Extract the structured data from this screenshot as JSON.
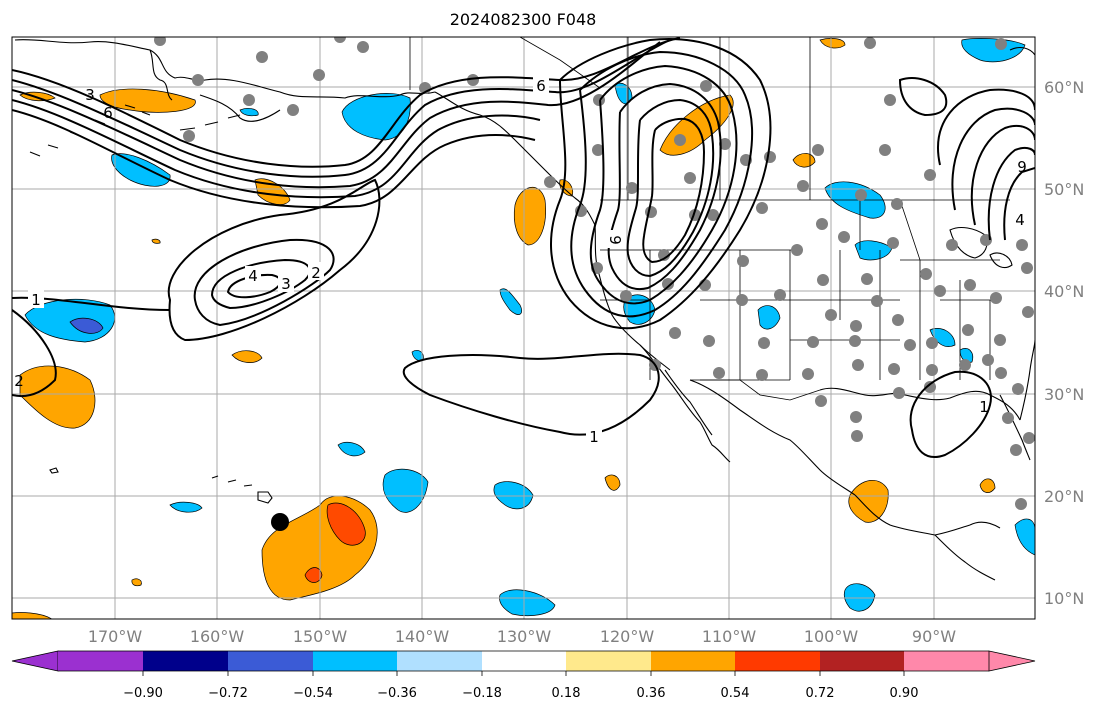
{
  "title": "2024082300 F048",
  "lon_labels": [
    "170°W",
    "160°W",
    "150°W",
    "140°W",
    "130°W",
    "120°W",
    "110°W",
    "100°W",
    "90°W"
  ],
  "lat_labels": [
    "60°N",
    "50°N",
    "40°N",
    "30°N",
    "20°N",
    "10°N"
  ],
  "colorbar": {
    "tick_labels": [
      "−0.90",
      "−0.72",
      "−0.54",
      "−0.36",
      "−0.18",
      "0.18",
      "0.36",
      "0.54",
      "0.72",
      "0.90"
    ],
    "colors": [
      "#9b30d0",
      "#00008b",
      "#3b5bd6",
      "#00bfff",
      "#b0e0ff",
      "#ffffff",
      "#ffe98c",
      "#ffa500",
      "#ff3a00",
      "#b22222",
      "#ff88aa"
    ]
  },
  "contour_labels": [
    "1",
    "2",
    "3",
    "4",
    "6",
    "9",
    "1",
    "2",
    "3",
    "4",
    "6",
    "9",
    "1"
  ],
  "markers": {
    "storm_center": "black-dot",
    "stations": "gray-dots"
  }
}
